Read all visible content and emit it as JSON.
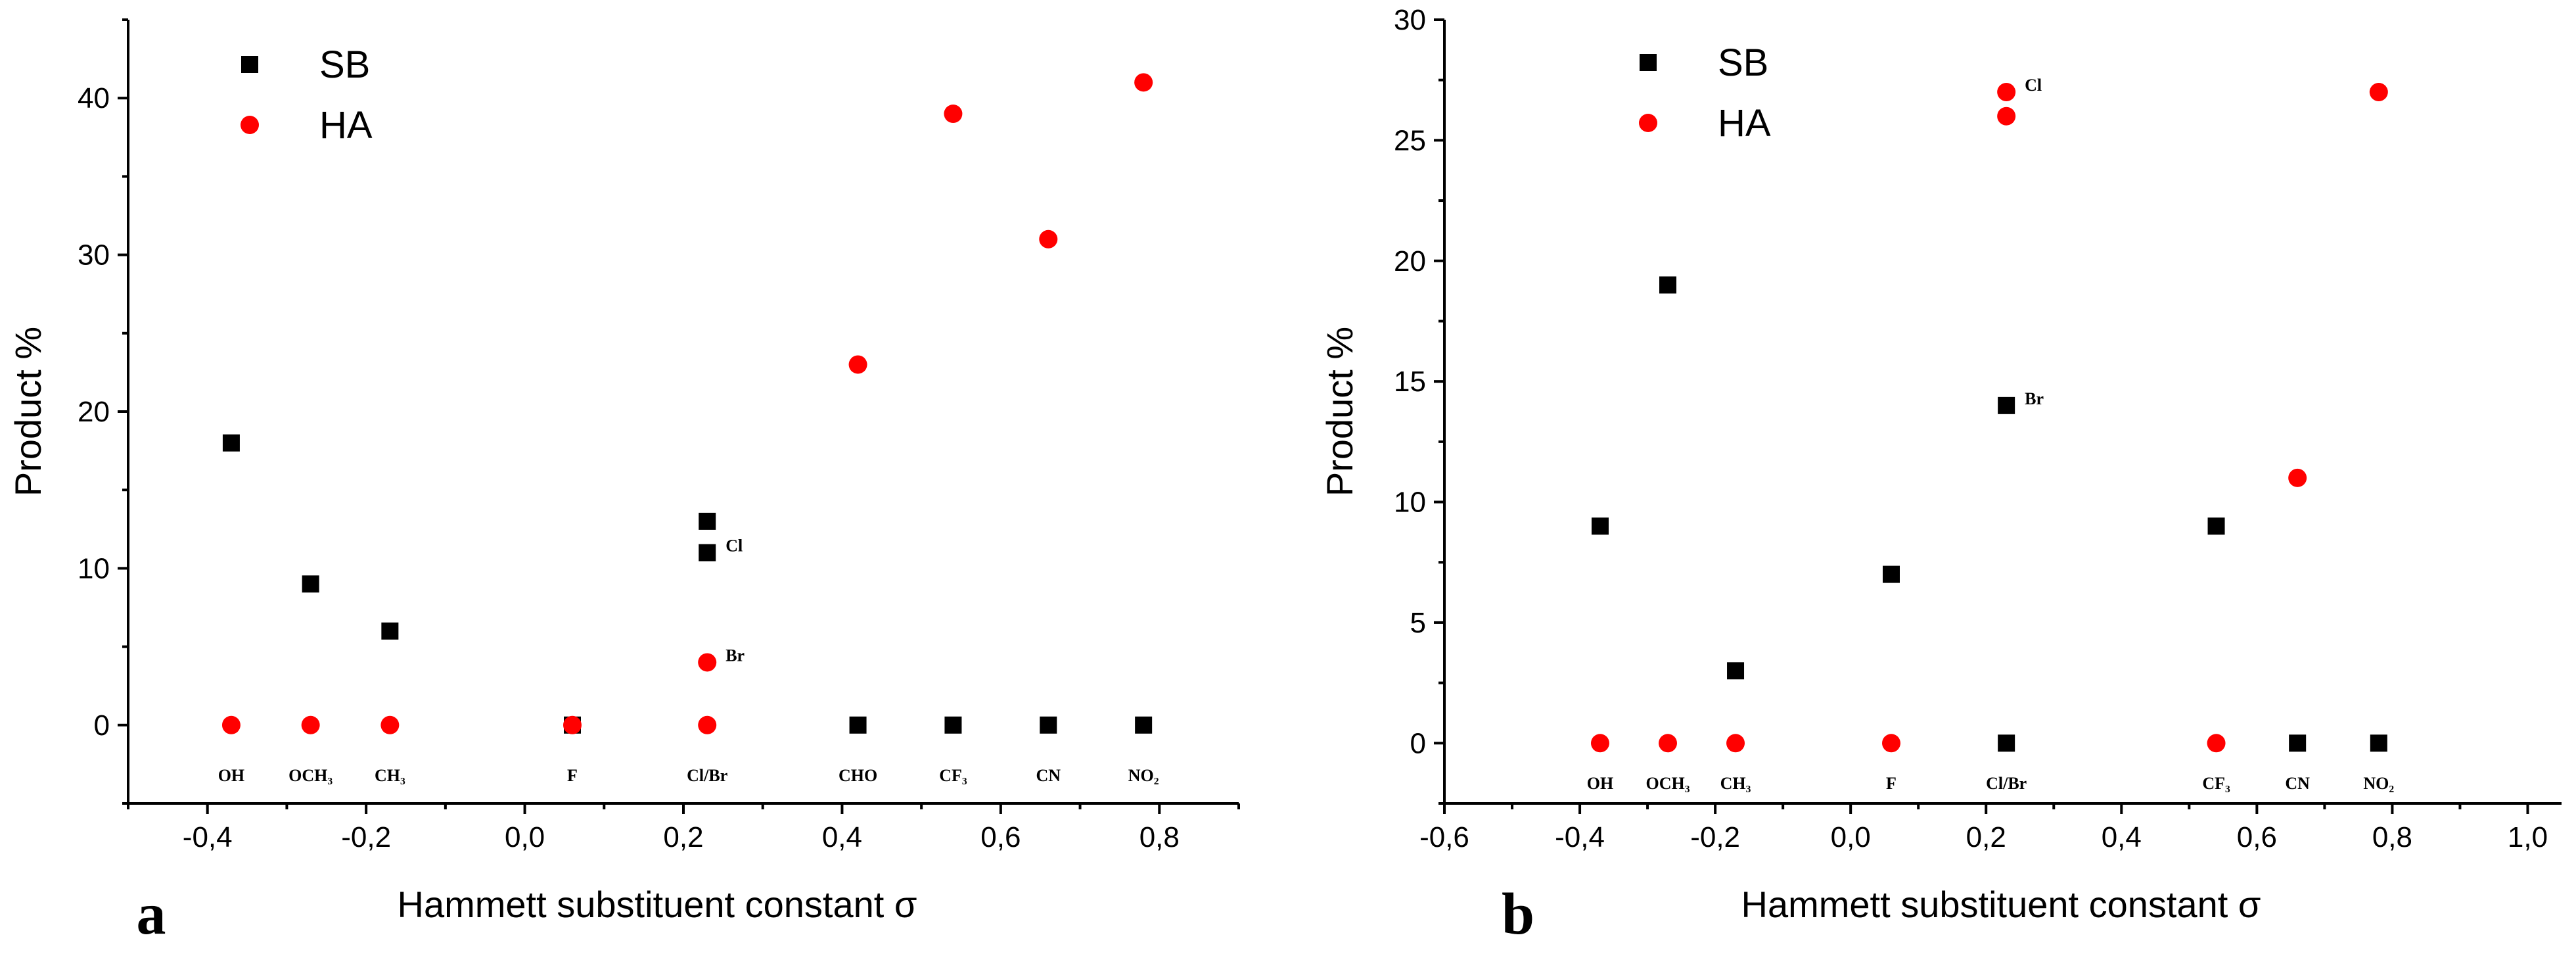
{
  "chart_data": [
    {
      "type": "scatter",
      "panel": "a",
      "xlabel": "Hammett substituent constant σ",
      "ylabel": "Product %",
      "xlim": [
        -0.5,
        0.9
      ],
      "ylim": [
        -5,
        45
      ],
      "xticks": [
        -0.4,
        -0.2,
        0.0,
        0.2,
        0.4,
        0.6,
        0.8
      ],
      "xtick_labels": [
        "-0,4",
        "-0,2",
        "0,0",
        "0,2",
        "0,4",
        "0,6",
        "0,8"
      ],
      "yticks": [
        0,
        10,
        20,
        30,
        40
      ],
      "ytick_labels": [
        "0",
        "10",
        "20",
        "30",
        "40"
      ],
      "legend": {
        "position": "top-left",
        "entries": [
          "SB",
          "HA"
        ]
      },
      "category_labels": [
        {
          "x": -0.37,
          "text": "OH"
        },
        {
          "x": -0.27,
          "text": "OCH₃"
        },
        {
          "x": -0.17,
          "text": "CH₃"
        },
        {
          "x": 0.06,
          "text": "F"
        },
        {
          "x": 0.23,
          "text": "Cl/Br"
        },
        {
          "x": 0.42,
          "text": "CHO"
        },
        {
          "x": 0.54,
          "text": "CF₃"
        },
        {
          "x": 0.66,
          "text": "CN"
        },
        {
          "x": 0.78,
          "text": "NO₂"
        }
      ],
      "series": [
        {
          "name": "SB",
          "marker": "square",
          "color": "#000000",
          "x": [
            -0.37,
            -0.27,
            -0.17,
            0.06,
            0.23,
            0.23,
            0.42,
            0.54,
            0.66,
            0.78
          ],
          "y": [
            18,
            9,
            6,
            0,
            13,
            11,
            0,
            0,
            0,
            0
          ]
        },
        {
          "name": "HA",
          "marker": "circle",
          "color": "#ff0000",
          "x": [
            -0.37,
            -0.27,
            -0.17,
            0.06,
            0.23,
            0.23,
            0.42,
            0.54,
            0.66,
            0.78
          ],
          "y": [
            0,
            0,
            0,
            0,
            0,
            4,
            23,
            39,
            31,
            41
          ]
        }
      ],
      "annotations": [
        {
          "x": 0.23,
          "y": 11,
          "text": "Cl"
        },
        {
          "x": 0.23,
          "y": 4,
          "text": "Br"
        }
      ]
    },
    {
      "type": "scatter",
      "panel": "b",
      "xlabel": "Hammett substituent constant σ",
      "ylabel": "Product %",
      "xlim": [
        -0.6,
        1.05
      ],
      "ylim": [
        -2.5,
        30
      ],
      "xticks": [
        -0.6,
        -0.4,
        -0.2,
        0.0,
        0.2,
        0.4,
        0.6,
        0.8,
        1.0
      ],
      "xtick_labels": [
        "-0,6",
        "-0,4",
        "-0,2",
        "0,0",
        "0,2",
        "0,4",
        "0,6",
        "0,8",
        "1,0"
      ],
      "yticks": [
        0,
        5,
        10,
        15,
        20,
        25,
        30
      ],
      "ytick_labels": [
        "0",
        "5",
        "10",
        "15",
        "20",
        "25",
        "30"
      ],
      "legend": {
        "position": "top-left",
        "entries": [
          "SB",
          "HA"
        ]
      },
      "category_labels": [
        {
          "x": -0.37,
          "text": "OH"
        },
        {
          "x": -0.27,
          "text": "OCH₃"
        },
        {
          "x": -0.17,
          "text": "CH₃"
        },
        {
          "x": 0.06,
          "text": "F"
        },
        {
          "x": 0.23,
          "text": "Cl/Br"
        },
        {
          "x": 0.54,
          "text": "CF₃"
        },
        {
          "x": 0.66,
          "text": "CN"
        },
        {
          "x": 0.78,
          "text": "NO₂"
        }
      ],
      "series": [
        {
          "name": "SB",
          "marker": "square",
          "color": "#000000",
          "x": [
            -0.37,
            -0.27,
            -0.17,
            0.06,
            0.23,
            0.23,
            0.54,
            0.66,
            0.78
          ],
          "y": [
            9,
            19,
            3,
            7,
            14,
            0,
            9,
            0,
            0
          ]
        },
        {
          "name": "HA",
          "marker": "circle",
          "color": "#ff0000",
          "x": [
            -0.37,
            -0.27,
            -0.17,
            0.06,
            0.23,
            0.23,
            0.54,
            0.66,
            0.78
          ],
          "y": [
            0,
            0,
            0,
            0,
            27,
            26,
            0,
            11,
            27
          ]
        }
      ],
      "annotations": [
        {
          "x": 0.23,
          "y": 27,
          "text": "Cl"
        },
        {
          "x": 0.23,
          "y": 14,
          "text": "Br"
        }
      ]
    }
  ]
}
